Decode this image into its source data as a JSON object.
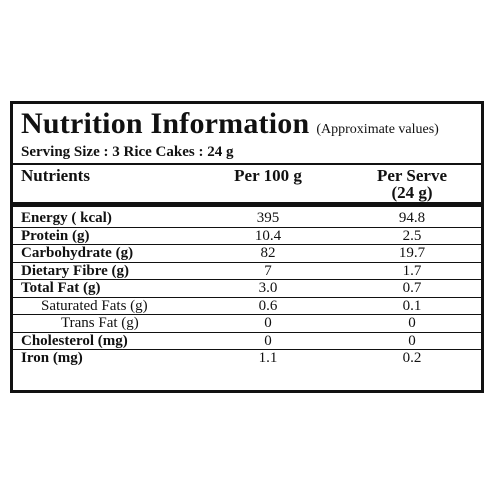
{
  "panel": {
    "title": "Nutrition Information",
    "title_note": "(Approximate values)",
    "serving": "Serving Size :  3 Rice Cakes : 24 g"
  },
  "table": {
    "headers": {
      "nutrients": "Nutrients",
      "per_100g": "Per 100 g",
      "per_serve_line1": "Per Serve",
      "per_serve_line2": "(24 g)"
    },
    "rows": [
      {
        "name": "Energy ( kcal)",
        "per_100g": "395",
        "per_serve": "94.8"
      },
      {
        "name": "Protein (g)",
        "per_100g": "10.4",
        "per_serve": "2.5"
      },
      {
        "name": "Carbohydrate (g)",
        "per_100g": "82",
        "per_serve": "19.7"
      },
      {
        "name": "Dietary Fibre (g)",
        "per_100g": "7",
        "per_serve": "1.7"
      },
      {
        "name": "Total Fat (g)",
        "per_100g": "3.0",
        "per_serve": "0.7"
      },
      {
        "name": "Saturated Fats (g)",
        "per_100g": "0.6",
        "per_serve": "0.1"
      },
      {
        "name": "Trans Fat (g)",
        "per_100g": "0",
        "per_serve": "0"
      },
      {
        "name": "Cholesterol (mg)",
        "per_100g": "0",
        "per_serve": "0"
      },
      {
        "name": "Iron (mg)",
        "per_100g": "1.1",
        "per_serve": "0.2"
      }
    ]
  }
}
